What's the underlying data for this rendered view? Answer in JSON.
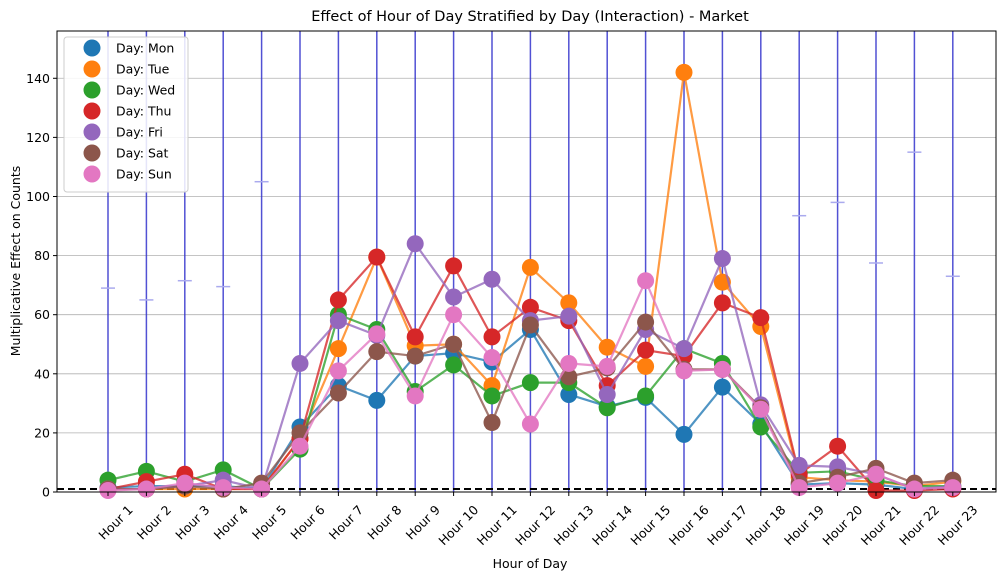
{
  "chart_data": {
    "type": "line",
    "title": "Effect of Hour of Day Stratified by Day (Interaction) - Market",
    "xlabel": "Hour of Day",
    "ylabel": "Multiplicative Effect on Counts",
    "categories": [
      "Hour 1",
      "Hour 2",
      "Hour 3",
      "Hour 4",
      "Hour 5",
      "Hour 6",
      "Hour 7",
      "Hour 8",
      "Hour 9",
      "Hour 10",
      "Hour 11",
      "Hour 12",
      "Hour 13",
      "Hour 14",
      "Hour 15",
      "Hour 16",
      "Hour 17",
      "Hour 18",
      "Hour 19",
      "Hour 20",
      "Hour 21",
      "Hour 22",
      "Hour 23"
    ],
    "ylim": [
      0,
      156
    ],
    "yticks": [
      0,
      20,
      40,
      60,
      80,
      100,
      120,
      140
    ],
    "grid": "horizontal",
    "legend_position": "top-left",
    "reference_line": {
      "y": 1,
      "style": "dashed",
      "color": "#000000"
    },
    "interval_color": "#3333cc",
    "intervals": [
      {
        "low": 0,
        "high": 156,
        "cap": 69
      },
      {
        "low": 0,
        "high": 156,
        "cap": 65
      },
      {
        "low": 0,
        "high": 156,
        "cap": 71.5
      },
      {
        "low": 0,
        "high": 156,
        "cap": 69.5
      },
      {
        "low": 0,
        "high": 156,
        "cap": 105
      },
      {
        "low": 0,
        "high": 156,
        "cap": null
      },
      {
        "low": 0,
        "high": 156,
        "cap": null
      },
      {
        "low": 0,
        "high": 156,
        "cap": null
      },
      {
        "low": 0,
        "high": 156,
        "cap": null
      },
      {
        "low": 0,
        "high": 156,
        "cap": null
      },
      {
        "low": 0,
        "high": 156,
        "cap": null
      },
      {
        "low": 0,
        "high": 156,
        "cap": null
      },
      {
        "low": 0,
        "high": 156,
        "cap": null
      },
      {
        "low": 0,
        "high": 156,
        "cap": null
      },
      {
        "low": 0,
        "high": 156,
        "cap": null
      },
      {
        "low": 0,
        "high": 156,
        "cap": null
      },
      {
        "low": 0,
        "high": 156,
        "cap": null
      },
      {
        "low": 0,
        "high": 156,
        "cap": null
      },
      {
        "low": 0,
        "high": 156,
        "cap": 93.5
      },
      {
        "low": 0,
        "high": 156,
        "cap": 98
      },
      {
        "low": 0,
        "high": 156,
        "cap": 77.5
      },
      {
        "low": 0,
        "high": 156,
        "cap": 115
      },
      {
        "low": 0,
        "high": 156,
        "cap": 73
      }
    ],
    "series": [
      {
        "name": "Day: Mon",
        "color": "#1f77b4",
        "values": [
          1.5,
          2,
          2,
          2,
          1,
          22,
          36,
          31,
          46,
          47,
          44,
          55,
          33,
          29,
          32,
          19.5,
          35.5,
          23,
          2.5,
          3,
          2.5,
          1,
          1.5
        ]
      },
      {
        "name": "Day: Tue",
        "color": "#ff7f0e",
        "values": [
          1,
          1,
          1,
          1,
          1,
          18,
          48.5,
          79.5,
          49.5,
          50,
          36,
          76,
          64,
          49,
          42.5,
          142,
          71,
          56,
          5,
          4,
          3.5,
          2,
          3.5
        ]
      },
      {
        "name": "Day: Wed",
        "color": "#2ca02c",
        "values": [
          4,
          7,
          3.5,
          7.5,
          1,
          14.5,
          60,
          55,
          34,
          43,
          32.5,
          37,
          37,
          28.5,
          32.5,
          48.5,
          43.5,
          22,
          6.5,
          7,
          4,
          2,
          2
        ]
      },
      {
        "name": "Day: Thu",
        "color": "#d62728",
        "values": [
          1,
          3.5,
          6,
          1,
          1,
          18,
          65,
          79.5,
          52.5,
          76.5,
          52.5,
          62.5,
          58,
          36,
          48,
          46,
          64,
          59,
          6,
          15.5,
          0.5,
          0.5,
          1
        ]
      },
      {
        "name": "Day: Fri",
        "color": "#9467bd",
        "values": [
          1,
          1,
          2,
          4,
          1,
          43.5,
          58,
          53,
          84,
          66,
          72,
          58,
          59.5,
          33,
          55,
          48.5,
          79,
          29.5,
          9,
          8.5,
          6,
          1,
          2
        ]
      },
      {
        "name": "Day: Sat",
        "color": "#8c564b",
        "values": [
          1,
          1,
          2,
          1,
          3,
          20,
          33.5,
          47.5,
          46,
          50,
          23.5,
          56.5,
          39,
          42,
          57.5,
          41.5,
          41.5,
          28.5,
          3,
          5,
          8,
          3,
          4
        ]
      },
      {
        "name": "Day: Sun",
        "color": "#e377c2",
        "values": [
          0.5,
          1,
          3,
          1.5,
          1,
          15.5,
          41,
          53.5,
          32.5,
          60,
          45.5,
          23,
          43.5,
          42.5,
          71.5,
          41,
          41.5,
          28,
          1.5,
          3,
          6,
          1,
          1.5
        ]
      }
    ]
  }
}
